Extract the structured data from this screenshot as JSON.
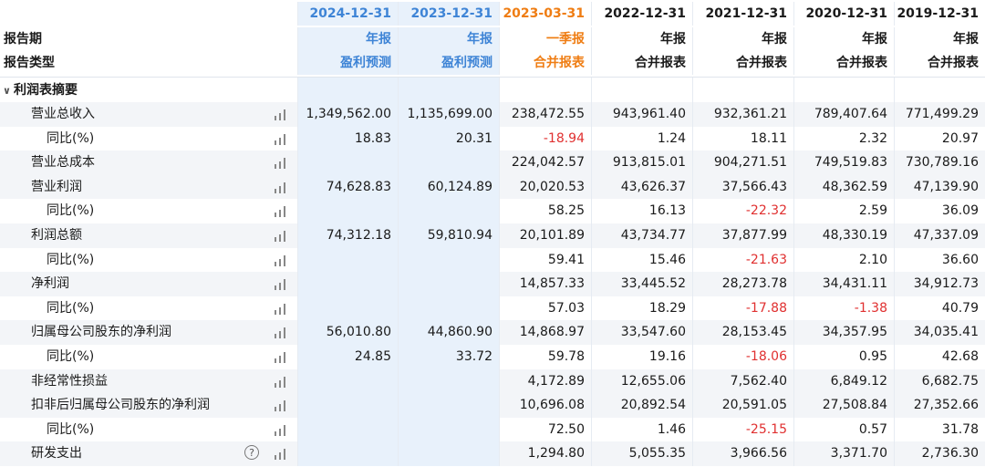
{
  "columns": [
    {
      "date": "2024-12-31",
      "period": "年报",
      "type": "盈利预测",
      "date_color": "blue",
      "type_color": "blue"
    },
    {
      "date": "2023-12-31",
      "period": "年报",
      "type": "盈利预测",
      "date_color": "blue",
      "type_color": "blue"
    },
    {
      "date": "2023-03-31",
      "period": "一季报",
      "type": "合并报表",
      "date_color": "orange",
      "type_color": "orange"
    },
    {
      "date": "2022-12-31",
      "period": "年报",
      "type": "合并报表",
      "date_color": "black",
      "type_color": "black"
    },
    {
      "date": "2021-12-31",
      "period": "年报",
      "type": "合并报表",
      "date_color": "black",
      "type_color": "black"
    },
    {
      "date": "2020-12-31",
      "period": "年报",
      "type": "合并报表",
      "date_color": "black",
      "type_color": "black"
    },
    {
      "date": "2019-12-31",
      "period": "年报",
      "type": "合并报表",
      "date_color": "black",
      "type_color": "black"
    }
  ],
  "header": {
    "period_label": "报告期",
    "type_label": "报告类型"
  },
  "section": {
    "title": "利润表摘要",
    "chevron": "∨"
  },
  "colors": {
    "blue": "#3e84d6",
    "orange": "#ef7d13",
    "negative": "#e03030",
    "forecast_bg": "#e8f1fb",
    "row_shade": "#f3f5f8"
  },
  "rows": [
    {
      "label": "营业总收入",
      "level": "main",
      "values": [
        "1,349,562.00",
        "1,135,699.00",
        "238,472.55",
        "943,961.40",
        "932,361.21",
        "789,407.64",
        "771,499.29"
      ]
    },
    {
      "label": "同比(%)",
      "level": "sub",
      "values": [
        "18.83",
        "20.31",
        "-18.94",
        "1.24",
        "18.11",
        "2.32",
        "20.97"
      ]
    },
    {
      "label": "营业总成本",
      "level": "main",
      "values": [
        "",
        "",
        "224,042.57",
        "913,815.01",
        "904,271.51",
        "749,519.83",
        "730,789.16"
      ]
    },
    {
      "label": "营业利润",
      "level": "main",
      "values": [
        "74,628.83",
        "60,124.89",
        "20,020.53",
        "43,626.37",
        "37,566.43",
        "48,362.59",
        "47,139.90"
      ]
    },
    {
      "label": "同比(%)",
      "level": "sub",
      "values": [
        "",
        "",
        "58.25",
        "16.13",
        "-22.32",
        "2.59",
        "36.09"
      ]
    },
    {
      "label": "利润总额",
      "level": "main",
      "values": [
        "74,312.18",
        "59,810.94",
        "20,101.89",
        "43,734.77",
        "37,877.99",
        "48,330.19",
        "47,337.09"
      ]
    },
    {
      "label": "同比(%)",
      "level": "sub",
      "values": [
        "",
        "",
        "59.41",
        "15.46",
        "-21.63",
        "2.10",
        "36.60"
      ]
    },
    {
      "label": "净利润",
      "level": "main",
      "values": [
        "",
        "",
        "14,857.33",
        "33,445.52",
        "28,273.78",
        "34,431.11",
        "34,912.73"
      ]
    },
    {
      "label": "同比(%)",
      "level": "sub",
      "values": [
        "",
        "",
        "57.03",
        "18.29",
        "-17.88",
        "-1.38",
        "40.79"
      ]
    },
    {
      "label": "归属母公司股东的净利润",
      "level": "main",
      "values": [
        "56,010.80",
        "44,860.90",
        "14,868.97",
        "33,547.60",
        "28,153.45",
        "34,357.95",
        "34,035.41"
      ]
    },
    {
      "label": "同比(%)",
      "level": "sub",
      "values": [
        "24.85",
        "33.72",
        "59.78",
        "19.16",
        "-18.06",
        "0.95",
        "42.68"
      ]
    },
    {
      "label": "非经常性损益",
      "level": "main",
      "values": [
        "",
        "",
        "4,172.89",
        "12,655.06",
        "7,562.40",
        "6,849.12",
        "6,682.75"
      ]
    },
    {
      "label": "扣非后归属母公司股东的净利润",
      "level": "main",
      "values": [
        "",
        "",
        "10,696.08",
        "20,892.54",
        "20,591.05",
        "27,508.84",
        "27,352.66"
      ]
    },
    {
      "label": "同比(%)",
      "level": "sub",
      "values": [
        "",
        "",
        "72.50",
        "1.46",
        "-25.15",
        "0.57",
        "31.78"
      ]
    },
    {
      "label": "研发支出",
      "level": "main",
      "help": true,
      "help_glyph": "?",
      "values": [
        "",
        "",
        "1,294.80",
        "5,055.35",
        "3,966.56",
        "3,371.70",
        "2,736.30"
      ]
    }
  ]
}
